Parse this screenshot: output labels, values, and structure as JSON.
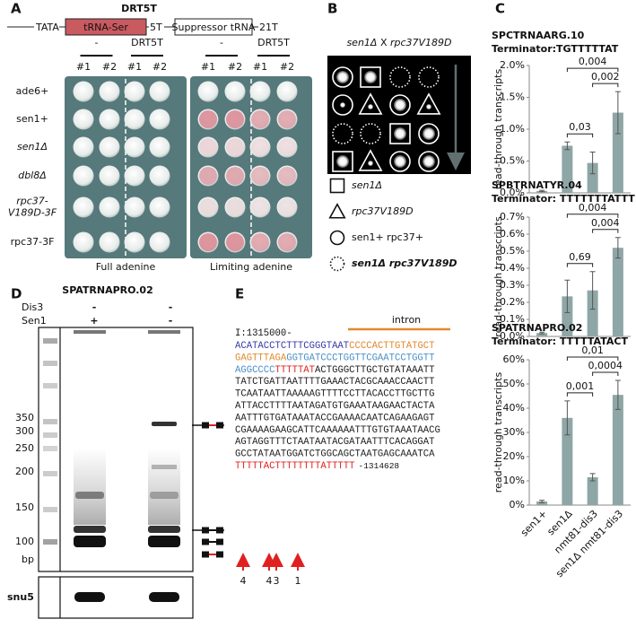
{
  "panel_a": {
    "label": "A",
    "title": "DRT5T",
    "construct": [
      "TATA",
      "tRNA-Ser",
      "5T",
      "Suppressor tRNA",
      "21T"
    ],
    "column_groups": [
      "-",
      "DRT5T",
      "-",
      "DRT5T"
    ],
    "clones": [
      "#1",
      "#2",
      "#1",
      "#2",
      "#1",
      "#2",
      "#1",
      "#2"
    ],
    "rows": [
      [
        "ade6+"
      ],
      [
        "sen1+"
      ],
      [
        "sen1Δ"
      ],
      [
        "dbl8Δ"
      ],
      [
        "rpc37-",
        "V189D-3F"
      ],
      [
        "rpc37-3F"
      ]
    ],
    "plates": [
      "Full adenine",
      "Limiting adenine"
    ]
  },
  "panel_b": {
    "label": "B",
    "title": [
      "sen1Δ",
      " X ",
      "rpc37V189D"
    ],
    "legend": [
      "sen1Δ",
      "rpc37V189D",
      "sen1+ rpc37+",
      "sen1Δ rpc37V189D"
    ]
  },
  "panel_c": {
    "label": "C"
  },
  "chart_data": [
    {
      "type": "bar",
      "title": "SPCTRNAARG.10",
      "subtitle": "Terminator:TGTTTTTAT",
      "y_label": "read-through transcripts",
      "categories": [
        null,
        null,
        null,
        null
      ],
      "values": [
        0.03,
        0.74,
        0.47,
        1.26
      ],
      "errors": [
        0.01,
        0.06,
        0.17,
        0.33
      ],
      "color": "#8fa6a6",
      "ylim": [
        0,
        2
      ],
      "yticks": [
        {
          "value": 0,
          "label": "0.0%"
        },
        {
          "value": 0.5,
          "label": "0.5%"
        },
        {
          "value": 1,
          "label": "1.0%"
        },
        {
          "value": 1.5,
          "label": "1.5%"
        },
        {
          "value": 2,
          "label": "2.0%"
        }
      ],
      "annotations": [
        "0,03",
        "0,004",
        "0,002"
      ]
    },
    {
      "type": "bar",
      "title": "SPBTRNATYR.04",
      "subtitle": "Terminator: TTTTTTTATTT",
      "y_label": "read-through transcripts",
      "categories": [
        null,
        null,
        null,
        null
      ],
      "values": [
        0.02,
        0.235,
        0.27,
        0.52
      ],
      "errors": [
        0.005,
        0.095,
        0.11,
        0.06
      ],
      "color": "#8fa6a6",
      "ylim": [
        0,
        0.7
      ],
      "yticks": [
        {
          "value": 0,
          "label": "0.0%"
        },
        {
          "value": 0.1,
          "label": "0.1%"
        },
        {
          "value": 0.2,
          "label": "0.2%"
        },
        {
          "value": 0.3,
          "label": "0.3%"
        },
        {
          "value": 0.4,
          "label": "0.4%"
        },
        {
          "value": 0.5,
          "label": "0.5%"
        },
        {
          "value": 0.6,
          "label": "0.6%"
        },
        {
          "value": 0.7,
          "label": "0.7%"
        }
      ],
      "annotations": [
        "0,69",
        "0,004",
        "0,004"
      ]
    },
    {
      "type": "bar",
      "title": "SPATRNAPRO.02",
      "subtitle": "Terminator: TTTTTATACT",
      "y_label": "read-through transcripts",
      "categories": [
        "sen1+",
        "sen1Δ",
        "nmt81-dis3",
        "sen1Δ nmt81-dis3"
      ],
      "values": [
        1.5,
        36,
        11.5,
        45.5
      ],
      "errors": [
        0.5,
        7,
        1.5,
        6
      ],
      "color": "#8fa6a6",
      "ylim": [
        0,
        60
      ],
      "yticks": [
        {
          "value": 0,
          "label": "0%"
        },
        {
          "value": 10,
          "label": "10%"
        },
        {
          "value": 20,
          "label": "20%"
        },
        {
          "value": 30,
          "label": "30%"
        },
        {
          "value": 40,
          "label": "40%"
        },
        {
          "value": 50,
          "label": "50%"
        },
        {
          "value": 60,
          "label": "60%"
        }
      ],
      "annotations": [
        "0,001",
        "0,01",
        "0,0004"
      ]
    }
  ],
  "panel_d": {
    "label": "D",
    "title": "SPATRNAPRO.02",
    "rows": [
      {
        "name": "Dis3",
        "lanes": [
          "-",
          "-"
        ]
      },
      {
        "name": "Sen1",
        "lanes": [
          "+",
          "-"
        ]
      }
    ],
    "markers": [
      "350",
      "300",
      "250",
      "200",
      "150",
      "100",
      "bp"
    ],
    "loading_control": "snu5"
  },
  "panel_e": {
    "label": "E",
    "start": "I:1315000-",
    "intron": "intron",
    "lines": [
      [
        {
          "text": "ACATACCTCTTTCGGGTAAT",
          "color": "#3a3aa8"
        },
        {
          "text": "CCCCACTTGTATGCT",
          "color": "#e08a2c"
        }
      ],
      [
        {
          "text": "GAGTTTAGA",
          "color": "#e08a2c"
        },
        {
          "text": "GGTGATCCCTGGTTCGAATCCTGGTT",
          "color": "#4a90c8"
        }
      ],
      [
        {
          "text": "AGGCCCC",
          "color": "#4a90c8"
        },
        {
          "text": "TTTTTAT",
          "color": "#e02020"
        },
        {
          "text": "ACTGGGCTTGCTGTATAAATT",
          "color": "#222222"
        }
      ],
      [
        {
          "text": "TATCTGATTAATTTTGAAACTACGCAAACCAACTT",
          "color": "#222222"
        }
      ],
      [
        {
          "text": "TCAATAATTAAAAAGTTTTCCTTACACCTTGCTTG",
          "color": "#222222"
        }
      ],
      [
        {
          "text": "ATTACCTTTTAATAGATGTGAAATAAGAACTACTA",
          "color": "#222222"
        }
      ],
      [
        {
          "text": "AATTTGTGATAAATACCGAAAACAATCAGAAGAGT",
          "color": "#222222"
        }
      ],
      [
        {
          "text": "CGAAAAGAAGCATTCAAAAAATTTGTGTAAATAACG",
          "color": "#222222"
        }
      ],
      [
        {
          "text": "AGTAGGTTTCTAATAATACGATAATTTCACAGGAT",
          "color": "#222222"
        }
      ],
      [
        {
          "text": "GCCTATAATGGATCTGGCAGCTAATGAGCAAATCA",
          "color": "#222222"
        }
      ],
      [
        {
          "text": "TTTTTACTTTTTTTTATTTTT",
          "color": "#e02020"
        }
      ]
    ],
    "end": "-1314628",
    "arrows": [
      "4",
      "4",
      "3",
      "1"
    ]
  }
}
